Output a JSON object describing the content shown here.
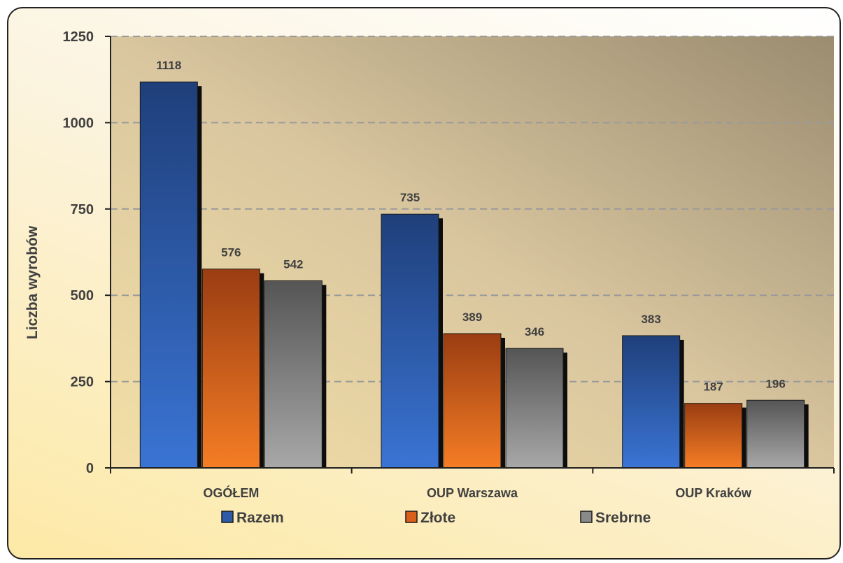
{
  "chart_data": {
    "type": "bar",
    "ylabel": "Liczba wyrobów",
    "xlabel": "",
    "title": "",
    "ylim": [
      0,
      1250
    ],
    "yticks": [
      0,
      250,
      500,
      750,
      1000,
      1250
    ],
    "categories": [
      "OGÓŁEM",
      "OUP Warszawa",
      "OUP Kraków"
    ],
    "series": [
      {
        "name": "Razem",
        "values": [
          1118,
          735,
          383
        ],
        "color": "#2e5aa8"
      },
      {
        "name": "Złote",
        "values": [
          576,
          389,
          187
        ],
        "color": "#d9601a"
      },
      {
        "name": "Srebrne",
        "values": [
          542,
          346,
          196
        ],
        "color": "#8a8a8a"
      }
    ],
    "grid": "horizontal dashed",
    "legend_position": "bottom",
    "data_labels": true
  }
}
